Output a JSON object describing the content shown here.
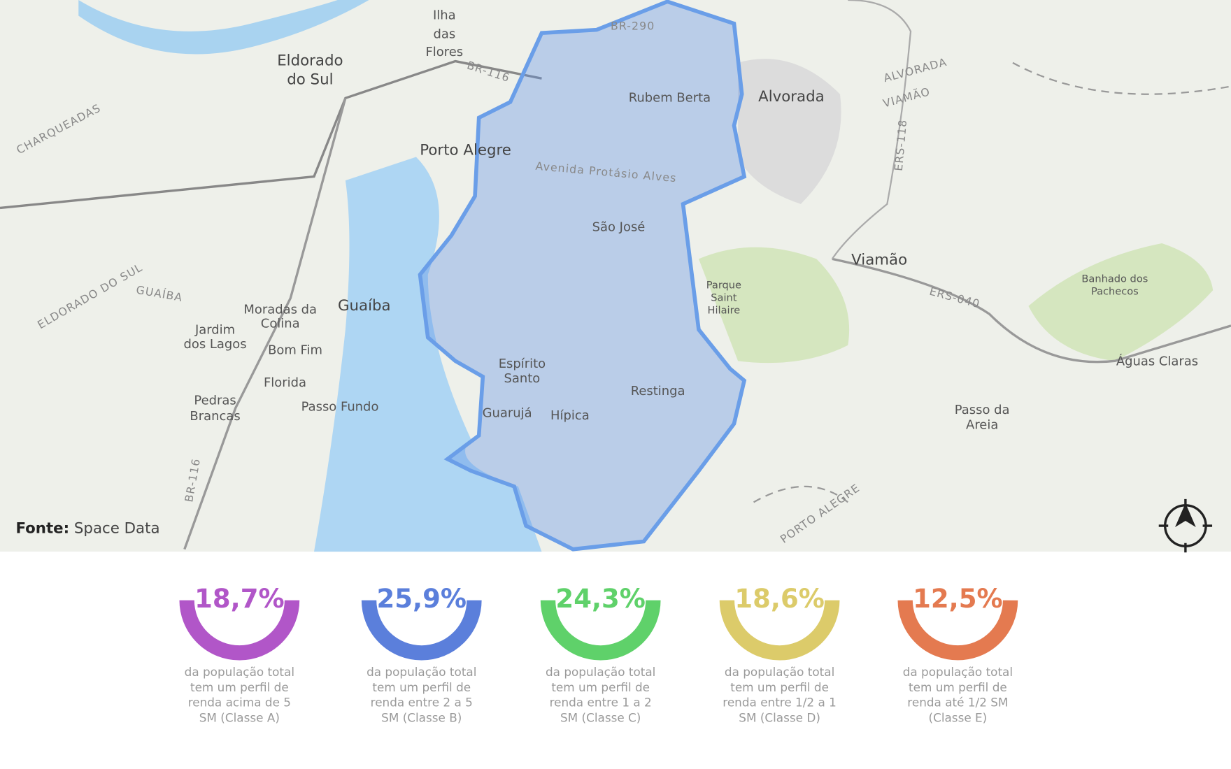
{
  "map": {
    "labels": [
      "Ilha",
      "das",
      "Flores",
      "Eldorado",
      "do Sul",
      "BR-290",
      "BR-116",
      "Rubem Berta",
      "Alvorada",
      "ALVORADA",
      "VIAMÃO",
      "CHARQUEADAS",
      "Porto Alegre",
      "Avenida Protásio Alves",
      "São José",
      "ERS-118",
      "Viamão",
      "ELDORADO DO SUL",
      "GUAÍBA",
      "Parque",
      "Saint",
      "Hilaire",
      "Banhado dos",
      "Pachecos",
      "ERS-040",
      "Moradas da",
      "Colina",
      "Guaíba",
      "Jardim",
      "dos Lagos",
      "Bom Fim",
      "Florida",
      "Espírito",
      "Santo",
      "Restinga",
      "Águas Claras",
      "Pedras",
      "Brancas",
      "Passo Fundo",
      "Guarujá",
      "Hípica",
      "Passo da",
      "Areia",
      "BR-116",
      "PORTO ALEGRE"
    ],
    "source": {
      "label": "Fonte:",
      "text": "Space Data"
    }
  },
  "stats": [
    {
      "value": "18,7%",
      "color": "#b156c8",
      "lines": [
        "da população total",
        "tem um perfil de",
        "renda acima de 5",
        "SM (Classe A)"
      ]
    },
    {
      "value": "25,9%",
      "color": "#5b7fdb",
      "lines": [
        "da população total",
        "tem um perfil de",
        "renda entre 2 a 5",
        "SM (Classe B)"
      ]
    },
    {
      "value": "24,3%",
      "color": "#5fd16a",
      "lines": [
        "da população total",
        "tem um perfil de",
        "renda entre 1 a 2",
        "SM (Classe C)"
      ]
    },
    {
      "value": "18,6%",
      "color": "#dccb6a",
      "lines": [
        "da população total",
        "tem um perfil de",
        "renda entre 1/2 a 1",
        "SM (Classe D)"
      ]
    },
    {
      "value": "12,5%",
      "color": "#e47a50",
      "lines": [
        "da população total",
        "tem um perfil de",
        "renda até 1/2 SM",
        "(Classe E)"
      ]
    }
  ]
}
